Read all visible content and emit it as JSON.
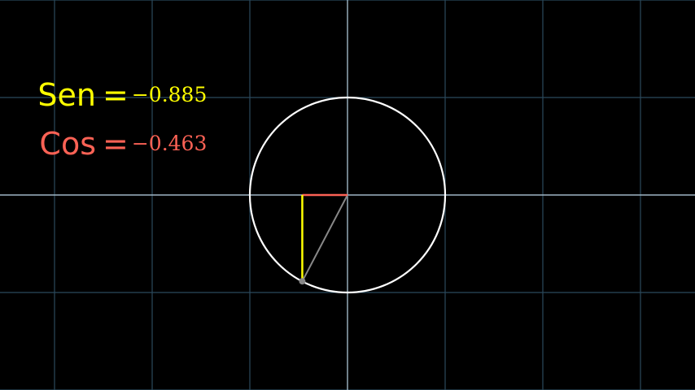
{
  "labels": {
    "sine": {
      "name": "Sen",
      "equals": "=",
      "value": "−0.885"
    },
    "cosine": {
      "name": "Cos",
      "equals": "=",
      "value": "−0.463"
    }
  },
  "values": {
    "sin": -0.885,
    "cos": -0.463
  },
  "colors": {
    "background": "#000000",
    "grid": "#2b4a5c",
    "axis": "#9fb6c6",
    "circle": "#ffffff",
    "sine": "#ffff00",
    "cosine": "#fc6255",
    "radius": "#888888"
  }
}
